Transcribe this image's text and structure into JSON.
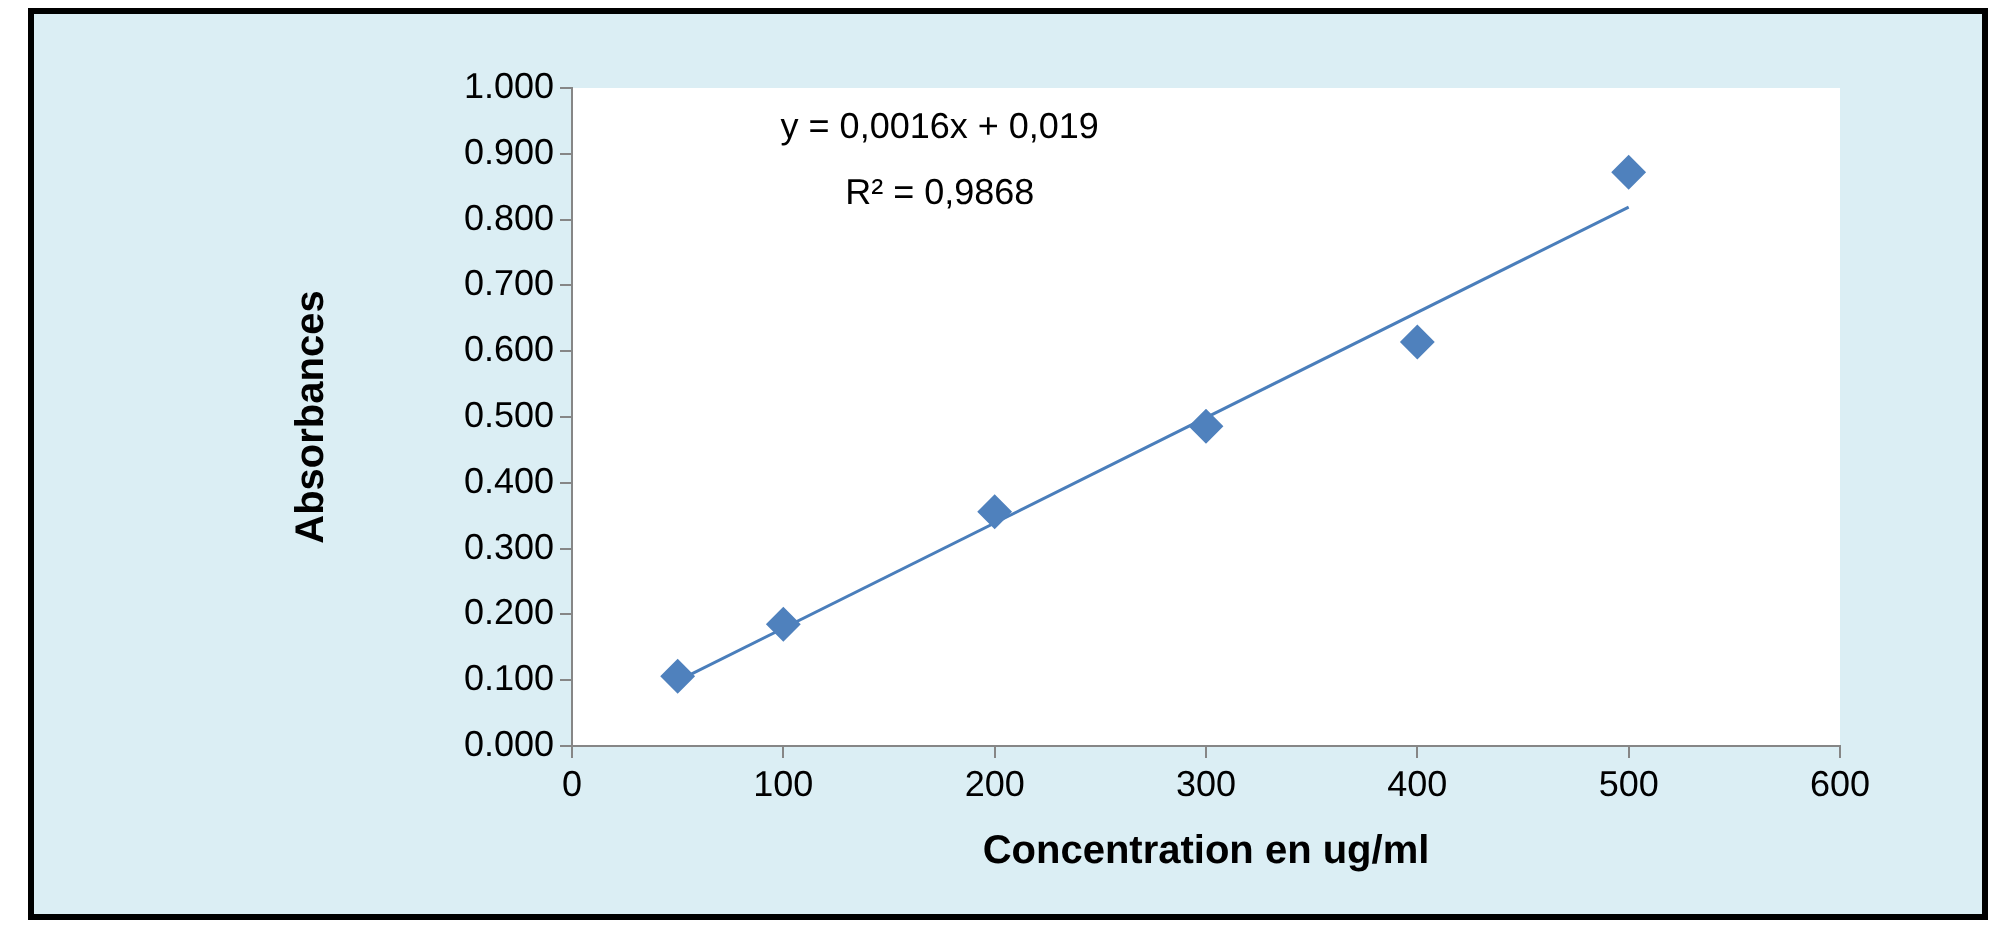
{
  "chart_data": {
    "type": "scatter",
    "xlabel": "Concentration en ug/ml",
    "ylabel": "Absorbances",
    "x": [
      50,
      100,
      200,
      300,
      400,
      500
    ],
    "series": [
      {
        "color": "#4f81bd",
        "values": [
          0.106,
          0.185,
          0.356,
          0.486,
          0.614,
          0.872
        ]
      },
      {
        "type": "line",
        "color": "#4a7ebb",
        "x": [
          50,
          500
        ],
        "values": [
          0.099,
          0.819
        ],
        "marker": "none"
      }
    ],
    "annotations": [
      "y = 0,0016x + 0,019",
      "R² = 0,9868"
    ],
    "xlim": [
      0,
      600
    ],
    "xticks": [
      0,
      100,
      200,
      300,
      400,
      500,
      600
    ],
    "ylim": [
      0,
      1
    ],
    "yticks": [
      {
        "value": 0,
        "label": "0.000"
      },
      {
        "value": 0.1,
        "label": "0.100"
      },
      {
        "value": 0.2,
        "label": "0.200"
      },
      {
        "value": 0.3,
        "label": "0.300"
      },
      {
        "value": 0.4,
        "label": "0.400"
      },
      {
        "value": 0.5,
        "label": "0.500"
      },
      {
        "value": 0.6,
        "label": "0.600"
      },
      {
        "value": 0.7,
        "label": "0.700"
      },
      {
        "value": 0.8,
        "label": "0.800"
      },
      {
        "value": 0.9,
        "label": "0.900"
      },
      {
        "value": 1,
        "label": "1.000"
      }
    ],
    "marker": "diamond",
    "grid": false,
    "legend": false
  }
}
